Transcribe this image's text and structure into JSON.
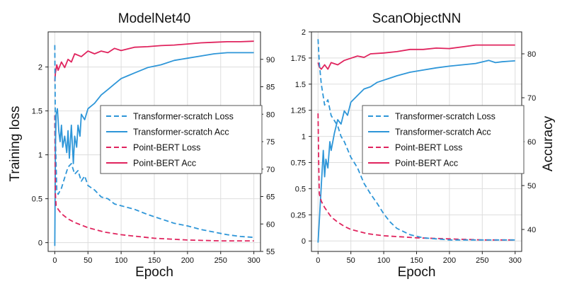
{
  "shared": {
    "left_ylabel": "Training loss",
    "right_ylabel": "Accuracy"
  },
  "chart_data": [
    {
      "type": "line",
      "title": "ModelNet40",
      "xlabel": "Epoch",
      "ylabel_left": "Training loss",
      "ylabel_right": "",
      "xlim": [
        -10,
        310
      ],
      "ylim_left": [
        -0.1,
        2.4
      ],
      "ylim_right": [
        55,
        95
      ],
      "xticks": [
        "0",
        "50",
        "100",
        "150",
        "200",
        "250",
        "300"
      ],
      "yticks_left": [
        "0",
        "0.5",
        "1",
        "1.5",
        "2"
      ],
      "yticks_right": [
        "55",
        "60",
        "65",
        "70",
        "75",
        "80",
        "85",
        "90"
      ],
      "grid": true,
      "legend_position": "center-right",
      "series": [
        {
          "name": "Transformer-scratch Loss",
          "axis": "left",
          "style": "dashed",
          "color": "#2e96d8",
          "x": [
            0,
            1,
            3,
            5,
            10,
            15,
            20,
            25,
            30,
            35,
            40,
            45,
            50,
            60,
            70,
            80,
            90,
            100,
            120,
            140,
            160,
            180,
            200,
            220,
            240,
            260,
            280,
            300
          ],
          "values": [
            2.25,
            1.2,
            0.6,
            0.55,
            0.62,
            0.74,
            0.86,
            0.9,
            0.78,
            0.82,
            0.7,
            0.76,
            0.65,
            0.6,
            0.52,
            0.5,
            0.44,
            0.42,
            0.38,
            0.32,
            0.27,
            0.22,
            0.19,
            0.15,
            0.12,
            0.09,
            0.07,
            0.06
          ]
        },
        {
          "name": "Transformer-scratch Acc",
          "axis": "right",
          "style": "solid",
          "color": "#2e96d8",
          "x": [
            0,
            1,
            2,
            4,
            6,
            8,
            10,
            12,
            15,
            18,
            20,
            22,
            25,
            28,
            30,
            33,
            35,
            38,
            40,
            45,
            50,
            60,
            70,
            80,
            90,
            100,
            110,
            120,
            140,
            160,
            180,
            200,
            220,
            240,
            260,
            280,
            300
          ],
          "values": [
            56,
            74,
            80,
            81,
            77,
            75,
            78,
            74,
            76,
            73,
            77,
            72,
            78,
            71,
            76,
            74,
            78,
            76,
            80,
            79,
            81,
            82,
            83.5,
            84.5,
            85.5,
            86.5,
            87,
            87.5,
            88.5,
            89,
            89.8,
            90.2,
            90.6,
            91,
            91.2,
            91.2,
            91.2
          ]
        },
        {
          "name": "Point-BERT Loss",
          "axis": "left",
          "style": "dashed",
          "color": "#e0245e",
          "x": [
            0,
            1,
            2,
            5,
            10,
            20,
            30,
            40,
            50,
            75,
            100,
            125,
            150,
            175,
            200,
            250,
            300
          ],
          "values": [
            1.45,
            0.55,
            0.42,
            0.38,
            0.33,
            0.27,
            0.23,
            0.2,
            0.17,
            0.12,
            0.09,
            0.07,
            0.05,
            0.04,
            0.03,
            0.02,
            0.02
          ]
        },
        {
          "name": "Point-BERT Acc",
          "axis": "right",
          "style": "solid",
          "color": "#e0245e",
          "x": [
            0,
            1,
            3,
            5,
            10,
            15,
            20,
            25,
            30,
            40,
            50,
            60,
            70,
            80,
            90,
            100,
            120,
            140,
            160,
            180,
            200,
            220,
            240,
            260,
            280,
            300
          ],
          "values": [
            86,
            87.5,
            89,
            88,
            89.5,
            88.5,
            90,
            89.5,
            91,
            90.5,
            91.5,
            91,
            91.5,
            91.2,
            92,
            91.6,
            92.2,
            92.3,
            92.5,
            92.6,
            92.8,
            93,
            93.1,
            93.2,
            93.2,
            93.3
          ]
        }
      ]
    },
    {
      "type": "line",
      "title": "ScanObjectNN",
      "xlabel": "Epoch",
      "ylabel_left": "",
      "ylabel_right": "Accuracy",
      "xlim": [
        -10,
        310
      ],
      "ylim_left": [
        -0.1,
        2.0
      ],
      "ylim_right": [
        35,
        85
      ],
      "xticks": [
        "0",
        "50",
        "100",
        "150",
        "200",
        "250",
        "300"
      ],
      "yticks_left": [
        "0",
        "0.25",
        "0.5",
        "0.75",
        "1",
        "1.25",
        "1.5",
        "1.75",
        "2"
      ],
      "yticks_right": [
        "40",
        "50",
        "60",
        "70",
        "80"
      ],
      "grid": true,
      "legend_position": "center-right",
      "series": [
        {
          "name": "Transformer-scratch Loss",
          "axis": "left",
          "style": "dashed",
          "color": "#2e96d8",
          "x": [
            0,
            2,
            5,
            10,
            15,
            20,
            25,
            30,
            35,
            40,
            50,
            60,
            70,
            80,
            90,
            100,
            110,
            120,
            140,
            160,
            180,
            200,
            250,
            300
          ],
          "values": [
            1.93,
            1.7,
            1.5,
            1.3,
            1.35,
            1.2,
            1.15,
            1.1,
            1.0,
            0.95,
            0.8,
            0.7,
            0.55,
            0.45,
            0.36,
            0.26,
            0.18,
            0.12,
            0.06,
            0.03,
            0.02,
            0.01,
            0.01,
            0.01
          ]
        },
        {
          "name": "Transformer-scratch Acc",
          "axis": "right",
          "style": "solid",
          "color": "#2e96d8",
          "x": [
            0,
            2,
            5,
            8,
            10,
            12,
            15,
            18,
            20,
            25,
            30,
            35,
            40,
            45,
            50,
            60,
            70,
            80,
            90,
            100,
            110,
            120,
            140,
            160,
            180,
            200,
            220,
            240,
            260,
            270,
            280,
            290,
            300
          ],
          "values": [
            37,
            42,
            50,
            58,
            52,
            56,
            54,
            60,
            58,
            62,
            65,
            64,
            67,
            66,
            69,
            70.5,
            72,
            72.5,
            73.5,
            74,
            74.5,
            75,
            75.8,
            76.3,
            76.8,
            77.2,
            77.5,
            77.8,
            78.5,
            78,
            78.2,
            78.3,
            78.4
          ]
        },
        {
          "name": "Point-BERT Loss",
          "axis": "left",
          "style": "dashed",
          "color": "#e0245e",
          "x": [
            0,
            1,
            2,
            5,
            10,
            20,
            30,
            40,
            50,
            75,
            100,
            125,
            150,
            200,
            250,
            300
          ],
          "values": [
            1.22,
            0.75,
            0.45,
            0.38,
            0.32,
            0.23,
            0.18,
            0.14,
            0.11,
            0.07,
            0.05,
            0.04,
            0.03,
            0.02,
            0.01,
            0.01
          ]
        },
        {
          "name": "Point-BERT Acc",
          "axis": "right",
          "style": "solid",
          "color": "#e0245e",
          "x": [
            0,
            2,
            5,
            10,
            15,
            20,
            30,
            40,
            50,
            60,
            70,
            80,
            100,
            120,
            140,
            160,
            180,
            200,
            220,
            240,
            260,
            280,
            300
          ],
          "values": [
            78,
            77,
            76.5,
            77.5,
            76.5,
            78,
            77.5,
            78.5,
            79,
            79.5,
            79.2,
            80,
            80.2,
            80.5,
            81,
            81,
            81.3,
            81.2,
            81.6,
            82,
            82,
            82,
            82
          ]
        }
      ]
    }
  ]
}
